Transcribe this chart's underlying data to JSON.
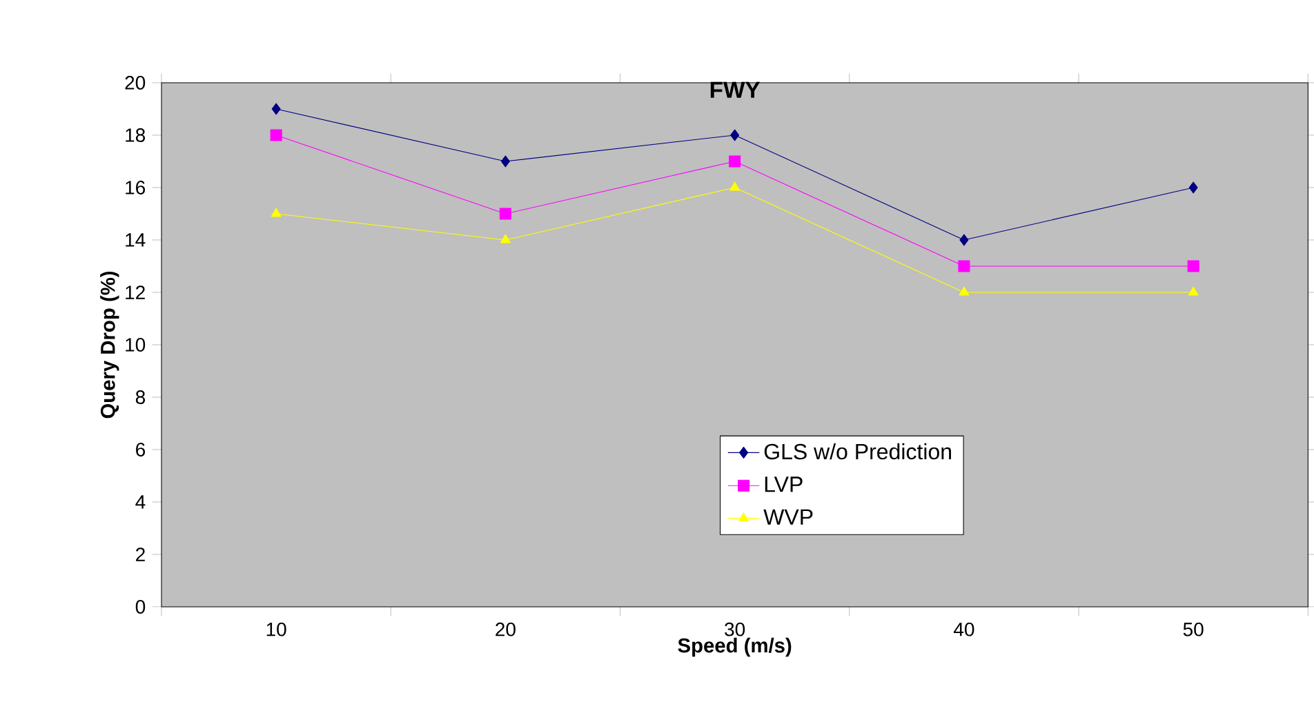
{
  "chart_data": {
    "type": "line",
    "title": "FWY",
    "xlabel": "Speed (m/s)",
    "ylabel": "Query Drop (%)",
    "categories": [
      "10",
      "20",
      "30",
      "40",
      "50"
    ],
    "ylim": [
      0,
      20
    ],
    "yticks": [
      0,
      2,
      4,
      6,
      8,
      10,
      12,
      14,
      16,
      18,
      20
    ],
    "grid": false,
    "legend": "bottom right",
    "line_style": "solid",
    "series": [
      {
        "name": "GLS w/o Prediction",
        "color": "#000080",
        "marker": "diamond",
        "values": [
          19,
          17,
          18,
          14,
          16
        ]
      },
      {
        "name": "LVP",
        "color": "#ff00ff",
        "marker": "square",
        "values": [
          18,
          15,
          17,
          13,
          13
        ]
      },
      {
        "name": "WVP",
        "color": "#ffff00",
        "marker": "triangle",
        "values": [
          15,
          14,
          16,
          12,
          12
        ]
      }
    ]
  }
}
